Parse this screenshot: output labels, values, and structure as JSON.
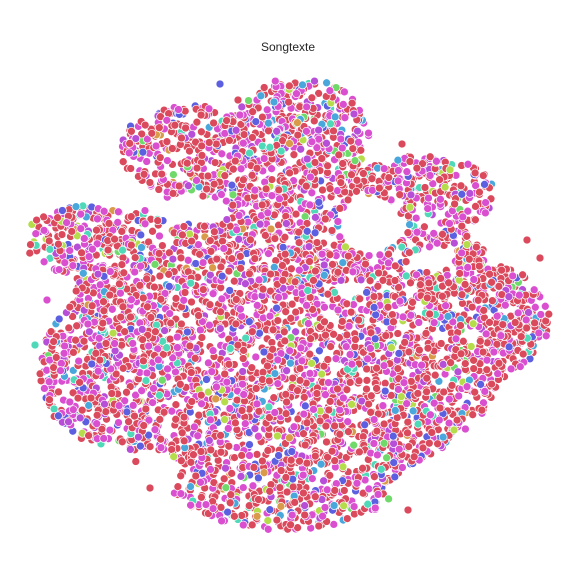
{
  "chart_data": {
    "type": "scatter",
    "title": "Songtexte",
    "xlabel": "",
    "ylabel": "",
    "axes_visible": false,
    "grid": false,
    "legend": "none",
    "marker_edge_color": "#ffffff",
    "palette": [
      "#db4a5c",
      "#d94fd0",
      "#b64ed8",
      "#5b5fe0",
      "#4aa7dc",
      "#4fd9b8",
      "#6fd96a",
      "#b5dc4a",
      "#d99a4a"
    ],
    "dominant_colors": [
      "#db4a5c",
      "#d94fd0"
    ]
  }
}
